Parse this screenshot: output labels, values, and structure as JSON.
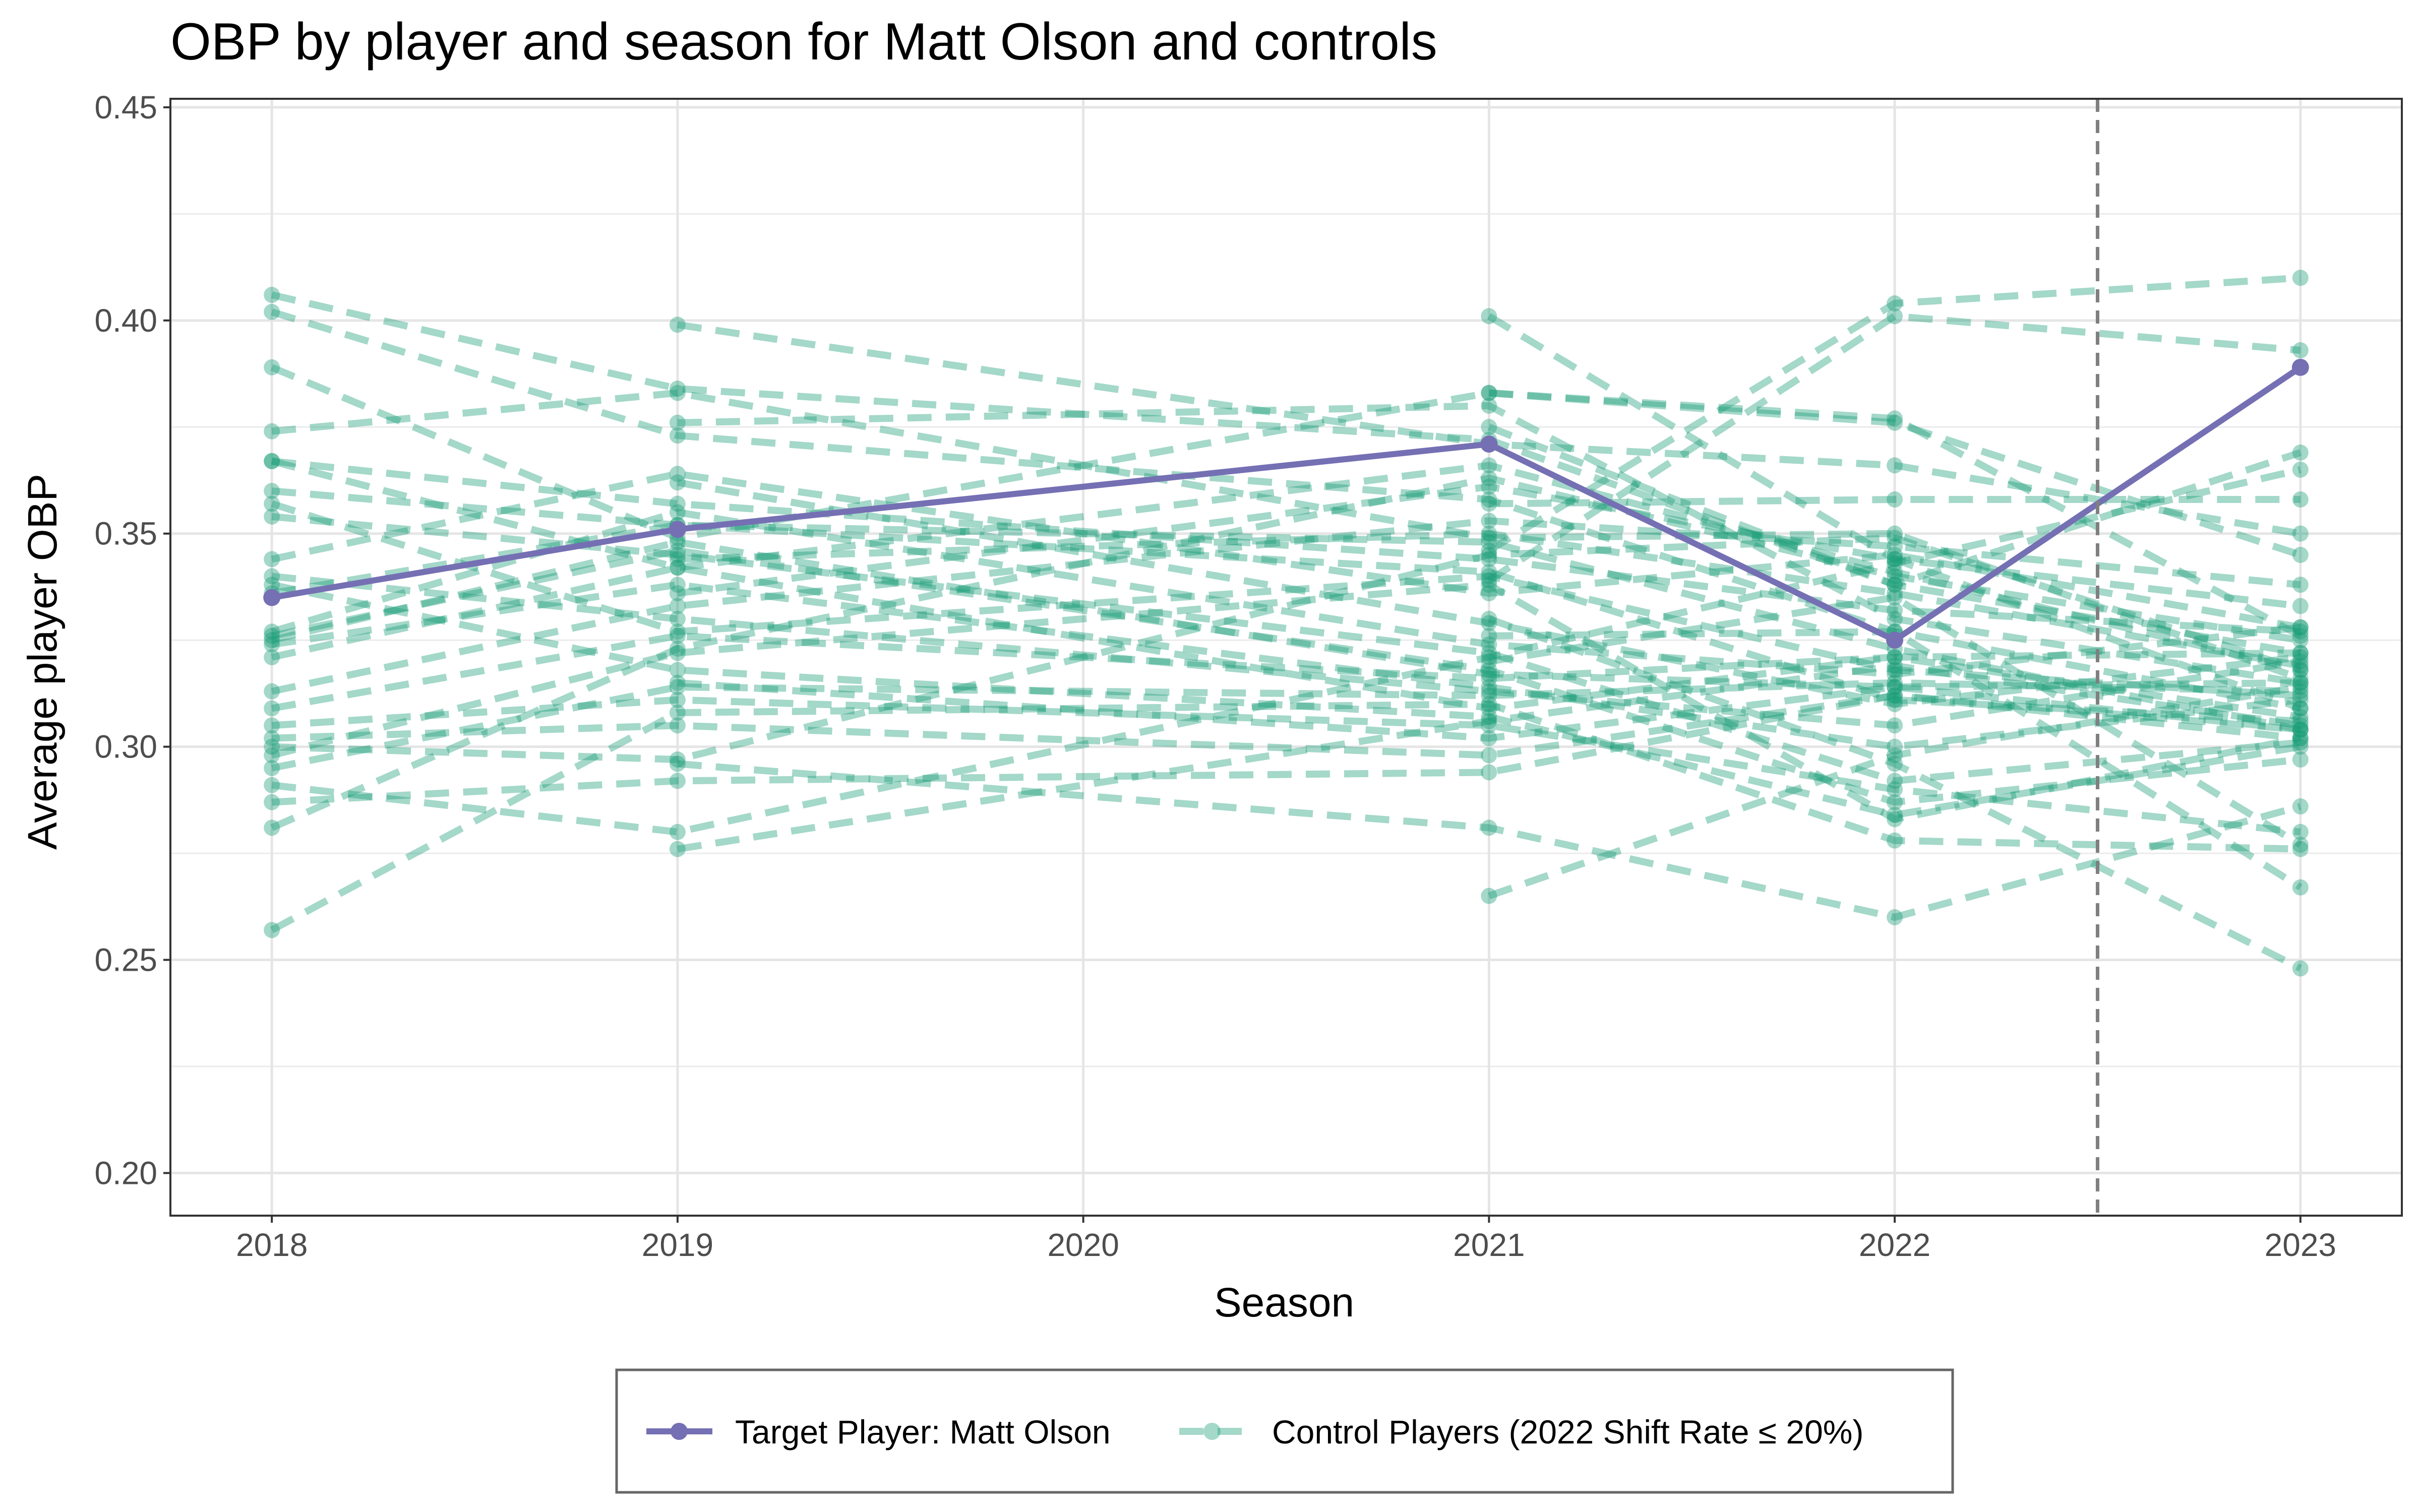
{
  "chart_data": {
    "type": "line",
    "title": "OBP by player and season for Matt Olson and controls",
    "xlabel": "Season",
    "ylabel": "Average player OBP",
    "x": [
      2018,
      2019,
      2020,
      2021,
      2022,
      2023
    ],
    "x_tick_labels": [
      "2018",
      "2019",
      "2020",
      "2021",
      "2022",
      "2023"
    ],
    "ylim": [
      0.19,
      0.452
    ],
    "xlim": [
      2017.75,
      2023.25
    ],
    "y_ticks": [
      0.2,
      0.25,
      0.3,
      0.35,
      0.4,
      0.45
    ],
    "y_tick_labels": [
      "0.20",
      "0.25",
      "0.30",
      "0.35",
      "0.40",
      "0.45"
    ],
    "grid": true,
    "legend_position": "bottom",
    "reference_line": {
      "x": 2022.5,
      "style": "dashed",
      "color": "#7f7f7f"
    },
    "colors": {
      "target": "#7570b3",
      "control": "#1b9e77"
    },
    "target_series": {
      "name": "Target Player: Matt Olson",
      "points": [
        {
          "x": 2018,
          "y": 0.335
        },
        {
          "x": 2019,
          "y": 0.351
        },
        {
          "x": 2021,
          "y": 0.371
        },
        {
          "x": 2022,
          "y": 0.325
        },
        {
          "x": 2023,
          "y": 0.389
        }
      ]
    },
    "control_series_name": "Control Players (2022 Shift Rate ≤ 20%)",
    "control_series": [
      [
        0.406,
        0.384,
        null,
        0.372,
        0.338,
        0.322
      ],
      [
        0.402,
        0.373,
        null,
        0.358,
        0.327,
        0.309
      ],
      [
        0.389,
        0.349,
        null,
        0.383,
        0.376,
        0.345
      ],
      [
        0.374,
        0.383,
        null,
        0.349,
        0.35,
        0.316
      ],
      [
        0.367,
        0.357,
        null,
        0.344,
        0.332,
        0.327
      ],
      [
        0.367,
        0.342,
        null,
        0.366,
        0.341,
        0.318
      ],
      [
        0.36,
        0.352,
        null,
        0.348,
        0.323,
        0.304
      ],
      [
        0.357,
        0.327,
        null,
        0.34,
        0.318,
        0.312
      ],
      [
        0.354,
        0.345,
        null,
        0.322,
        0.292,
        0.301
      ],
      [
        0.344,
        0.364,
        null,
        0.336,
        0.345,
        0.328
      ],
      [
        0.34,
        0.33,
        null,
        0.313,
        0.305,
        0.32
      ],
      [
        0.338,
        0.318,
        null,
        0.307,
        0.284,
        0.3
      ],
      [
        0.336,
        0.352,
        null,
        0.341,
        0.311,
        0.306
      ],
      [
        0.327,
        0.355,
        null,
        0.324,
        0.317,
        0.328
      ],
      [
        0.326,
        0.346,
        null,
        0.318,
        0.287,
        0.297
      ],
      [
        0.325,
        0.348,
        null,
        0.317,
        0.314,
        0.315
      ],
      [
        0.324,
        0.338,
        null,
        0.314,
        0.3,
        0.311
      ],
      [
        0.321,
        0.342,
        null,
        0.309,
        0.321,
        0.322
      ],
      [
        0.313,
        0.333,
        null,
        0.353,
        0.347,
        0.338
      ],
      [
        0.309,
        0.326,
        null,
        0.316,
        0.321,
        0.307
      ],
      [
        0.305,
        0.311,
        null,
        0.305,
        0.29,
        0.28
      ],
      [
        0.302,
        0.305,
        null,
        0.298,
        0.312,
        0.304
      ],
      [
        0.3,
        0.297,
        null,
        0.345,
        0.349,
        0.318
      ],
      [
        0.298,
        0.322,
        null,
        0.338,
        0.283,
        0.302
      ],
      [
        0.295,
        0.314,
        null,
        0.312,
        0.315,
        0.313
      ],
      [
        0.291,
        0.28,
        null,
        0.321,
        0.343,
        0.365
      ],
      [
        0.287,
        0.292,
        null,
        0.294,
        0.312,
        0.302
      ],
      [
        0.281,
        0.323,
        null,
        0.363,
        0.34,
        0.325
      ],
      [
        0.257,
        0.308,
        null,
        0.31,
        0.278,
        0.276
      ],
      [
        null,
        0.399,
        null,
        0.371,
        0.366,
        0.35
      ],
      [
        null,
        0.376,
        null,
        0.38,
        0.33,
        0.315
      ],
      [
        null,
        0.362,
        null,
        0.329,
        0.31,
        0.321
      ],
      [
        null,
        0.344,
        null,
        0.35,
        0.336,
        0.319
      ],
      [
        null,
        0.336,
        null,
        0.361,
        0.344,
        0.309
      ],
      [
        null,
        0.315,
        null,
        0.302,
        0.314,
        0.304
      ],
      [
        null,
        0.296,
        null,
        0.281,
        0.26,
        0.286
      ],
      [
        null,
        0.276,
        null,
        0.306,
        0.319,
        0.305
      ],
      [
        null,
        null,
        null,
        0.401,
        0.344,
        0.333
      ],
      [
        null,
        null,
        null,
        0.265,
        0.298,
        0.314
      ],
      [
        null,
        null,
        null,
        0.346,
        0.404,
        0.41
      ],
      [
        null,
        null,
        null,
        0.339,
        0.401,
        0.393
      ],
      [
        null,
        null,
        null,
        0.375,
        0.338,
        0.369
      ],
      [
        null,
        null,
        null,
        0.357,
        0.358,
        0.358
      ],
      [
        null,
        null,
        null,
        0.326,
        0.327,
        0.267
      ],
      [
        null,
        null,
        null,
        0.33,
        0.296,
        0.248
      ],
      [
        null,
        null,
        null,
        0.32,
        0.335,
        0.277
      ],
      [
        null,
        null,
        null,
        0.383,
        0.377,
        0.326
      ]
    ]
  }
}
